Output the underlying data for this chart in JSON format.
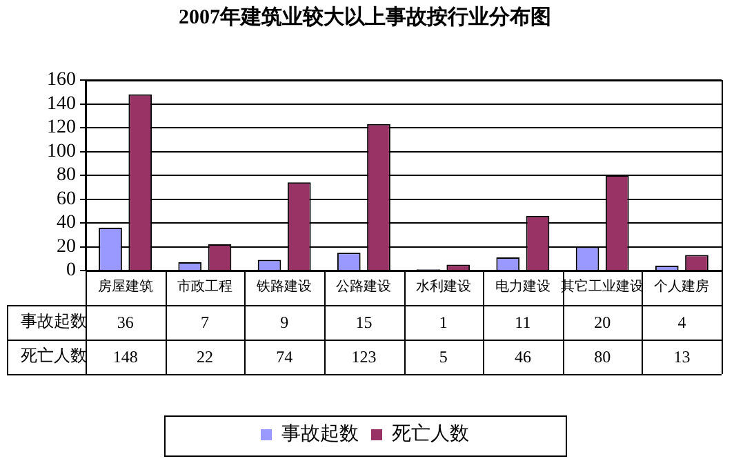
{
  "chart_data": {
    "type": "bar",
    "title": "2007年建筑业较大以上事故按行业分布图",
    "categories": [
      "房屋建筑",
      "市政工程",
      "铁路建设",
      "公路建设",
      "水利建设",
      "电力建设",
      "其它工业建设",
      "个人建房"
    ],
    "series": [
      {
        "name": "事故起数",
        "color": "#9999ff",
        "values": [
          36,
          7,
          9,
          15,
          1,
          11,
          20,
          4
        ]
      },
      {
        "name": "死亡人数",
        "color": "#993366",
        "values": [
          148,
          22,
          74,
          123,
          5,
          46,
          80,
          13
        ]
      }
    ],
    "ylim": [
      0,
      160
    ],
    "yticks": [
      0,
      20,
      40,
      60,
      80,
      100,
      120,
      140,
      160
    ],
    "grid": "y",
    "legend": "bottom",
    "data_labels": true
  }
}
